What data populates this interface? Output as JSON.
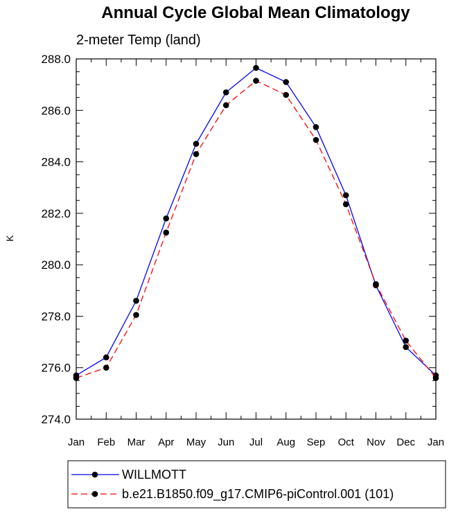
{
  "chart_data": {
    "type": "line",
    "title": "Annual Cycle Global Mean Climatology",
    "subtitle": "2-meter Temp (land)",
    "ylabel": "K",
    "xlabel": "",
    "ylim": [
      274.0,
      288.0
    ],
    "yticks": [
      "274.0",
      "276.0",
      "278.0",
      "280.0",
      "282.0",
      "284.0",
      "286.0",
      "288.0"
    ],
    "ytick_values": [
      274,
      276,
      278,
      280,
      282,
      284,
      286,
      288
    ],
    "categories": [
      "Jan",
      "Feb",
      "Mar",
      "Apr",
      "May",
      "Jun",
      "Jul",
      "Aug",
      "Sep",
      "Oct",
      "Nov",
      "Dec",
      "Jan"
    ],
    "series": [
      {
        "name": "WILLMOTT",
        "color": "#0000ff",
        "dash": "solid",
        "values": [
          275.7,
          276.4,
          278.6,
          281.8,
          284.7,
          286.7,
          287.65,
          287.1,
          285.35,
          282.7,
          279.2,
          276.8,
          275.7
        ]
      },
      {
        "name": "b.e21.B1850.f09_g17.CMIP6-piControl.001 (101)",
        "color": "#ff0000",
        "dash": "dashed",
        "values": [
          275.6,
          276.0,
          278.05,
          281.25,
          284.3,
          286.2,
          287.15,
          286.6,
          284.85,
          282.35,
          279.25,
          277.05,
          275.6
        ]
      }
    ],
    "grid": false,
    "legend_position": "bottom"
  }
}
